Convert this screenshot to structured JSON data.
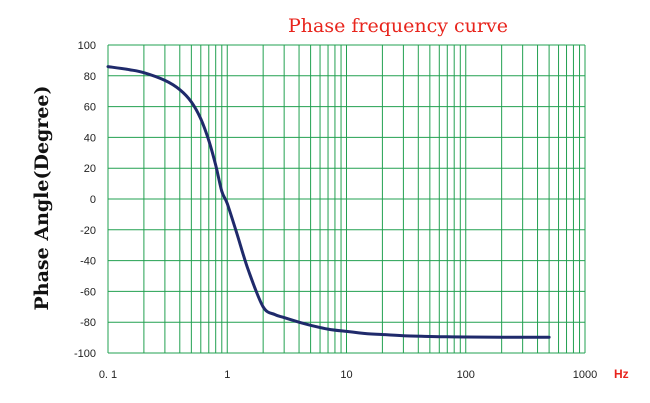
{
  "chart_data": {
    "type": "line",
    "title": "Phase frequency curve",
    "xlabel": "",
    "ylabel": "Phase Angle(Degree)",
    "x_unit": "Hz",
    "x_scale": "log",
    "xlim": [
      0.1,
      1000
    ],
    "ylim": [
      -100,
      100
    ],
    "x_ticks": [
      0.1,
      1,
      10,
      100,
      1000
    ],
    "x_tick_labels": [
      "0. 1",
      "1",
      "10",
      "100",
      "1000"
    ],
    "y_ticks": [
      100,
      80,
      60,
      40,
      20,
      0,
      -20,
      -40,
      -60,
      -80,
      -100
    ],
    "y_tick_labels": [
      "100",
      "80",
      "60",
      "40",
      "20",
      "0",
      "-20",
      "-40",
      "-60",
      "-80",
      "-100"
    ],
    "grid": true,
    "legend": "none",
    "series": [
      {
        "x": [
          0.1,
          0.15,
          0.2,
          0.3,
          0.4,
          0.5,
          0.6,
          0.7,
          0.8,
          0.9,
          1.0,
          1.2,
          1.5,
          2.0,
          2.5,
          3.0,
          4.0,
          5.0,
          7.0,
          10,
          15,
          20,
          30,
          50,
          70,
          100,
          200,
          500
        ],
        "y": [
          86,
          84,
          82,
          77,
          71,
          63,
          52,
          38,
          22,
          5,
          -3,
          -22,
          -46,
          -70,
          -75,
          -77,
          -80,
          -82,
          -84.5,
          -86,
          -87.5,
          -88,
          -88.8,
          -89.3,
          -89.5,
          -89.6,
          -89.8,
          -89.8
        ]
      }
    ],
    "colors": {
      "line": "#1f2a6b",
      "grid": "#22a050",
      "title": "#e8241c",
      "unit": "#e8241c"
    }
  }
}
